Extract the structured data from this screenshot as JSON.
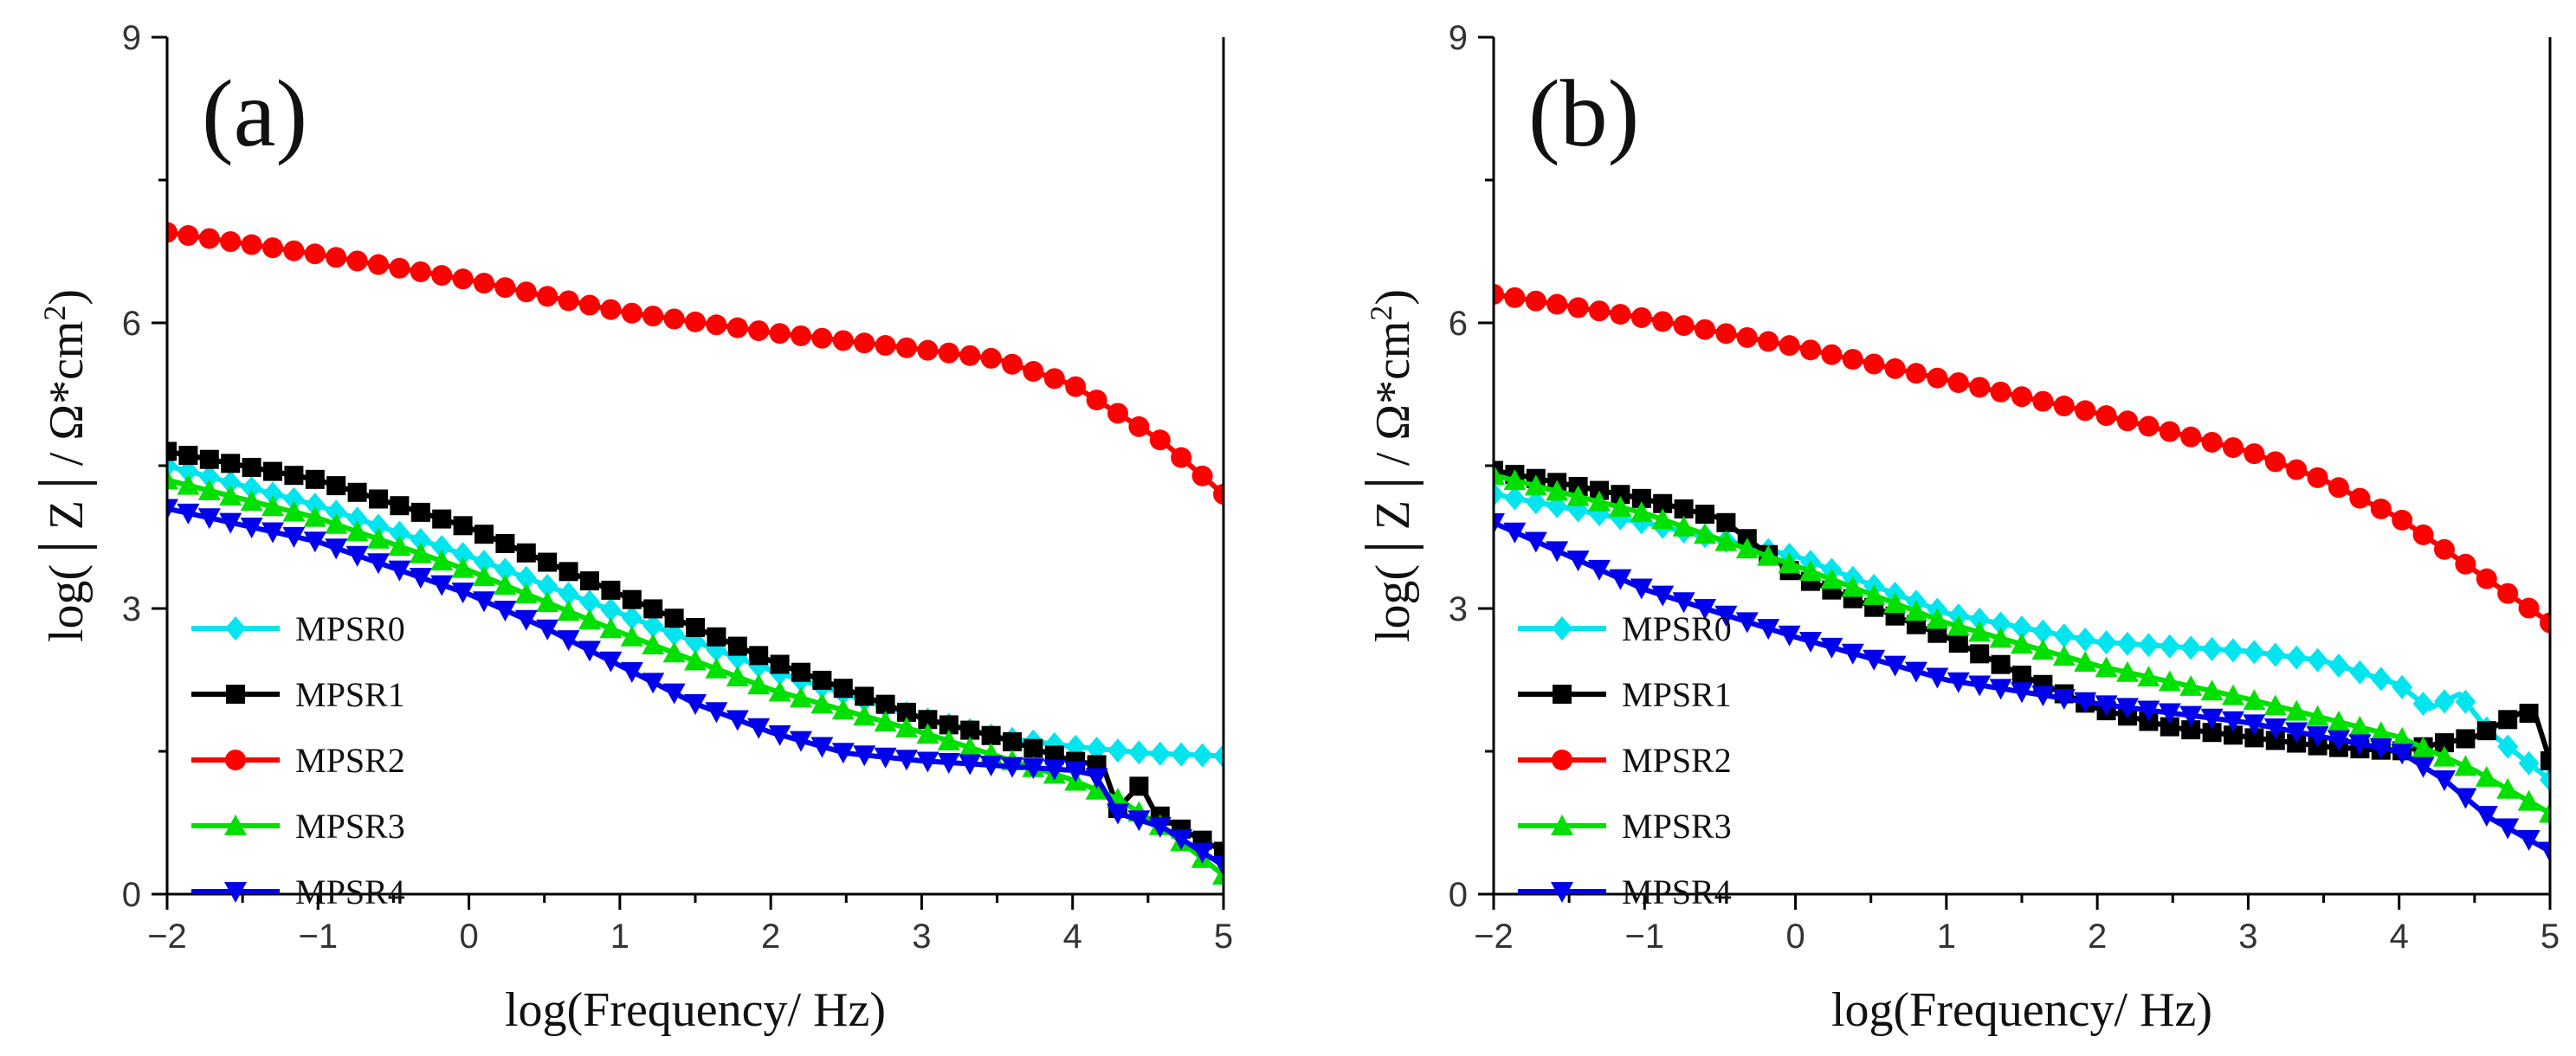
{
  "chart_data": [
    {
      "type": "line",
      "panel_label": "(a)",
      "title": "",
      "xlabel": "log(Frequency/ Hz)",
      "ylabel": "log(|Z|/Ω*cm²)",
      "ylabel_parts": {
        "open": "log(",
        "bar": "│",
        "z": "Z",
        "unit": "/ Ω*cm",
        "sup": "2",
        "close": ")"
      },
      "xlim": [
        -2,
        5
      ],
      "ylim": [
        0,
        9
      ],
      "xticks": [
        -2,
        -1,
        0,
        1,
        2,
        3,
        4,
        5
      ],
      "xtick_labels": [
        "−2",
        "−1",
        "0",
        "1",
        "2",
        "3",
        "4",
        "5"
      ],
      "yticks": [
        0,
        3,
        6,
        9
      ],
      "ytick_labels": [
        "0",
        "3",
        "6",
        "9"
      ],
      "grid": false,
      "legend_position": "bottom-left",
      "series": [
        {
          "name": "MPSR0",
          "color": "#00e5ee",
          "marker": "diamond",
          "points": [
            [
              -2,
              4.5
            ],
            [
              -1,
              4.08
            ],
            [
              0,
              3.55
            ],
            [
              1,
              2.95
            ],
            [
              2,
              2.35
            ],
            [
              3,
              1.85
            ],
            [
              3.5,
              1.65
            ],
            [
              4,
              1.55
            ],
            [
              4.5,
              1.48
            ],
            [
              5,
              1.45
            ]
          ]
        },
        {
          "name": "MPSR1",
          "color": "#000000",
          "marker": "square",
          "points": [
            [
              -2,
              4.65
            ],
            [
              -1,
              4.35
            ],
            [
              0,
              3.85
            ],
            [
              0.5,
              3.5
            ],
            [
              1,
              3.15
            ],
            [
              2,
              2.45
            ],
            [
              3,
              1.85
            ],
            [
              3.5,
              1.65
            ],
            [
              4,
              1.4
            ],
            [
              4.2,
              1.35
            ],
            [
              4.3,
              0.9
            ],
            [
              4.45,
              1.15
            ],
            [
              4.55,
              0.85
            ],
            [
              4.7,
              0.7
            ],
            [
              5,
              0.45
            ]
          ]
        },
        {
          "name": "MPSR2",
          "color": "#ff0000",
          "marker": "circle",
          "points": [
            [
              -2,
              6.95
            ],
            [
              -1,
              6.72
            ],
            [
              0,
              6.45
            ],
            [
              1,
              6.12
            ],
            [
              2,
              5.9
            ],
            [
              3,
              5.72
            ],
            [
              3.5,
              5.62
            ],
            [
              4,
              5.35
            ],
            [
              4.3,
              5.05
            ],
            [
              4.6,
              4.75
            ],
            [
              5,
              4.2
            ]
          ]
        },
        {
          "name": "MPSR3",
          "color": "#00e000",
          "marker": "triangle-up",
          "points": [
            [
              -2,
              4.35
            ],
            [
              -1,
              3.95
            ],
            [
              0,
              3.4
            ],
            [
              1,
              2.75
            ],
            [
              2,
              2.15
            ],
            [
              3,
              1.7
            ],
            [
              3.5,
              1.45
            ],
            [
              4,
              1.2
            ],
            [
              4.3,
              1.0
            ],
            [
              4.6,
              0.7
            ],
            [
              5,
              0.2
            ]
          ]
        },
        {
          "name": "MPSR4",
          "color": "#0000ee",
          "marker": "triangle-down",
          "points": [
            [
              -2,
              4.05
            ],
            [
              -1,
              3.7
            ],
            [
              0,
              3.15
            ],
            [
              0.5,
              2.8
            ],
            [
              1,
              2.4
            ],
            [
              1.5,
              2.0
            ],
            [
              2,
              1.7
            ],
            [
              2.5,
              1.48
            ],
            [
              3,
              1.4
            ],
            [
              4,
              1.3
            ],
            [
              4.15,
              1.25
            ],
            [
              4.3,
              0.85
            ],
            [
              4.6,
              0.7
            ],
            [
              5,
              0.3
            ]
          ]
        }
      ]
    },
    {
      "type": "line",
      "panel_label": "(b)",
      "title": "",
      "xlabel": "log(Frequency/ Hz)",
      "ylabel": "log(|Z|/Ω*cm²)",
      "ylabel_parts": {
        "open": "log(",
        "bar": "│",
        "z": "Z",
        "unit": "/ Ω*cm",
        "sup": "2",
        "close": ")"
      },
      "xlim": [
        -2,
        5
      ],
      "ylim": [
        0,
        9
      ],
      "xticks": [
        -2,
        -1,
        0,
        1,
        2,
        3,
        4,
        5
      ],
      "xtick_labels": [
        "−2",
        "−1",
        "0",
        "1",
        "2",
        "3",
        "4",
        "5"
      ],
      "yticks": [
        0,
        3,
        6,
        9
      ],
      "ytick_labels": [
        "0",
        "3",
        "6",
        "9"
      ],
      "grid": false,
      "legend_position": "bottom-left",
      "series": [
        {
          "name": "MPSR0",
          "color": "#00e5ee",
          "marker": "diamond",
          "points": [
            [
              -2,
              4.2
            ],
            [
              -1,
              3.9
            ],
            [
              0,
              3.55
            ],
            [
              1,
              2.95
            ],
            [
              2,
              2.65
            ],
            [
              3,
              2.55
            ],
            [
              3.5,
              2.45
            ],
            [
              4,
              2.2
            ],
            [
              4.2,
              1.95
            ],
            [
              4.4,
              2.1
            ],
            [
              4.6,
              1.7
            ],
            [
              5,
              1.2
            ]
          ]
        },
        {
          "name": "MPSR1",
          "color": "#000000",
          "marker": "square",
          "points": [
            [
              -2,
              4.45
            ],
            [
              -1,
              4.15
            ],
            [
              -0.5,
              3.95
            ],
            [
              0,
              3.35
            ],
            [
              1,
              2.7
            ],
            [
              1.5,
              2.3
            ],
            [
              2,
              1.95
            ],
            [
              2.5,
              1.75
            ],
            [
              3,
              1.65
            ],
            [
              3.5,
              1.55
            ],
            [
              4,
              1.5
            ],
            [
              4.5,
              1.65
            ],
            [
              4.8,
              1.9
            ],
            [
              4.9,
              1.9
            ],
            [
              5,
              1.4
            ]
          ]
        },
        {
          "name": "MPSR2",
          "color": "#ff0000",
          "marker": "circle",
          "points": [
            [
              -2,
              6.3
            ],
            [
              -1,
              6.05
            ],
            [
              0,
              5.75
            ],
            [
              1,
              5.4
            ],
            [
              2,
              5.05
            ],
            [
              3,
              4.65
            ],
            [
              3.5,
              4.35
            ],
            [
              4,
              3.95
            ],
            [
              4.5,
              3.4
            ],
            [
              5,
              2.85
            ]
          ]
        },
        {
          "name": "MPSR3",
          "color": "#00e000",
          "marker": "triangle-up",
          "points": [
            [
              -2,
              4.4
            ],
            [
              -1,
              4.0
            ],
            [
              0,
              3.45
            ],
            [
              1,
              2.85
            ],
            [
              2,
              2.4
            ],
            [
              3,
              2.05
            ],
            [
              4,
              1.65
            ],
            [
              4.5,
              1.3
            ],
            [
              5,
              0.85
            ]
          ]
        },
        {
          "name": "MPSR4",
          "color": "#0000ee",
          "marker": "triangle-down",
          "points": [
            [
              -2,
              3.9
            ],
            [
              -1,
              3.2
            ],
            [
              0,
              2.7
            ],
            [
              1,
              2.25
            ],
            [
              2,
              2.0
            ],
            [
              3,
              1.8
            ],
            [
              4,
              1.5
            ],
            [
              4.3,
              1.2
            ],
            [
              4.6,
              0.8
            ],
            [
              5,
              0.45
            ]
          ]
        }
      ]
    }
  ]
}
